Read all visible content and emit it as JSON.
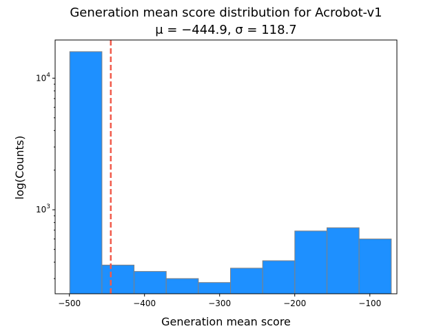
{
  "chart_data": {
    "type": "bar",
    "title": "Generation mean score distribution for Acrobot-v1",
    "subtitle": "μ = −444.9, σ = 118.7",
    "xlabel": "Generation mean score",
    "ylabel": "log(Counts)",
    "y_scale": "log",
    "xlim": [
      -519,
      -64
    ],
    "ylim": [
      230,
      19500
    ],
    "x_ticks": [
      {
        "value": -500,
        "label": "−500"
      },
      {
        "value": -400,
        "label": "−400"
      },
      {
        "value": -300,
        "label": "−300"
      },
      {
        "value": -200,
        "label": "−200"
      },
      {
        "value": -100,
        "label": "−100"
      }
    ],
    "y_ticks": [
      {
        "value": 1000,
        "base": "10",
        "exp": "3"
      },
      {
        "value": 10000,
        "base": "10",
        "exp": "4"
      }
    ],
    "bins": [
      {
        "start": -499.5,
        "end": -456.7,
        "count": 15900
      },
      {
        "start": -456.7,
        "end": -413.9,
        "count": 380
      },
      {
        "start": -413.9,
        "end": -371.1,
        "count": 340
      },
      {
        "start": -371.1,
        "end": -328.3,
        "count": 300
      },
      {
        "start": -328.3,
        "end": -285.5,
        "count": 280
      },
      {
        "start": -285.5,
        "end": -242.7,
        "count": 360
      },
      {
        "start": -242.7,
        "end": -199.9,
        "count": 410
      },
      {
        "start": -199.9,
        "end": -157.1,
        "count": 690
      },
      {
        "start": -157.1,
        "end": -114.3,
        "count": 730
      },
      {
        "start": -114.3,
        "end": -71.5,
        "count": 600
      }
    ],
    "mean_line": {
      "value": -444.9,
      "color": "#f15a4a",
      "style": "dashed"
    },
    "colors": {
      "bar_fill": "#1e90ff",
      "bar_edge": "#808080",
      "mean_line": "#f15a4a"
    },
    "grid": false,
    "legend": "none"
  }
}
